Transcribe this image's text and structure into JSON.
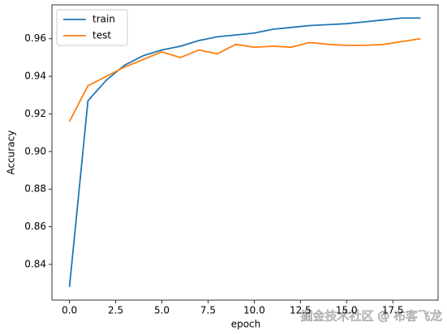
{
  "chart_data": {
    "type": "line",
    "x_label": "epoch",
    "y_label": "Accuracy",
    "x": [
      0,
      1,
      2,
      3,
      4,
      5,
      6,
      7,
      8,
      9,
      10,
      11,
      12,
      13,
      14,
      15,
      16,
      17,
      18,
      19
    ],
    "series": [
      {
        "name": "train",
        "color": "#1f77b4",
        "values": [
          0.828,
          0.927,
          0.938,
          0.946,
          0.951,
          0.954,
          0.956,
          0.959,
          0.961,
          0.962,
          0.963,
          0.965,
          0.966,
          0.967,
          0.9675,
          0.968,
          0.969,
          0.97,
          0.971,
          0.971
        ]
      },
      {
        "name": "test",
        "color": "#ff7f0e",
        "values": [
          0.916,
          0.935,
          0.94,
          0.945,
          0.949,
          0.953,
          0.95,
          0.954,
          0.952,
          0.957,
          0.9555,
          0.956,
          0.9555,
          0.958,
          0.957,
          0.9565,
          0.9565,
          0.957,
          0.9585,
          0.96
        ]
      }
    ],
    "xlim": [
      -0.95,
      19.95
    ],
    "ylim": [
      0.821,
      0.978
    ],
    "xticks": [
      {
        "value": 0,
        "label": "0.0"
      },
      2.5,
      {
        "value": 5,
        "label": "5.0"
      },
      7.5,
      {
        "value": 10,
        "label": "10.0"
      },
      12.5,
      {
        "value": 15,
        "label": "15.0"
      },
      17.5
    ],
    "yticks": [
      0.84,
      0.86,
      0.88,
      {
        "value": 0.9,
        "label": "0.90"
      },
      0.92,
      0.94,
      0.96
    ],
    "legend": "upper left",
    "grid": false,
    "watermark": "掘金技术社区 @ 布客飞龙"
  }
}
